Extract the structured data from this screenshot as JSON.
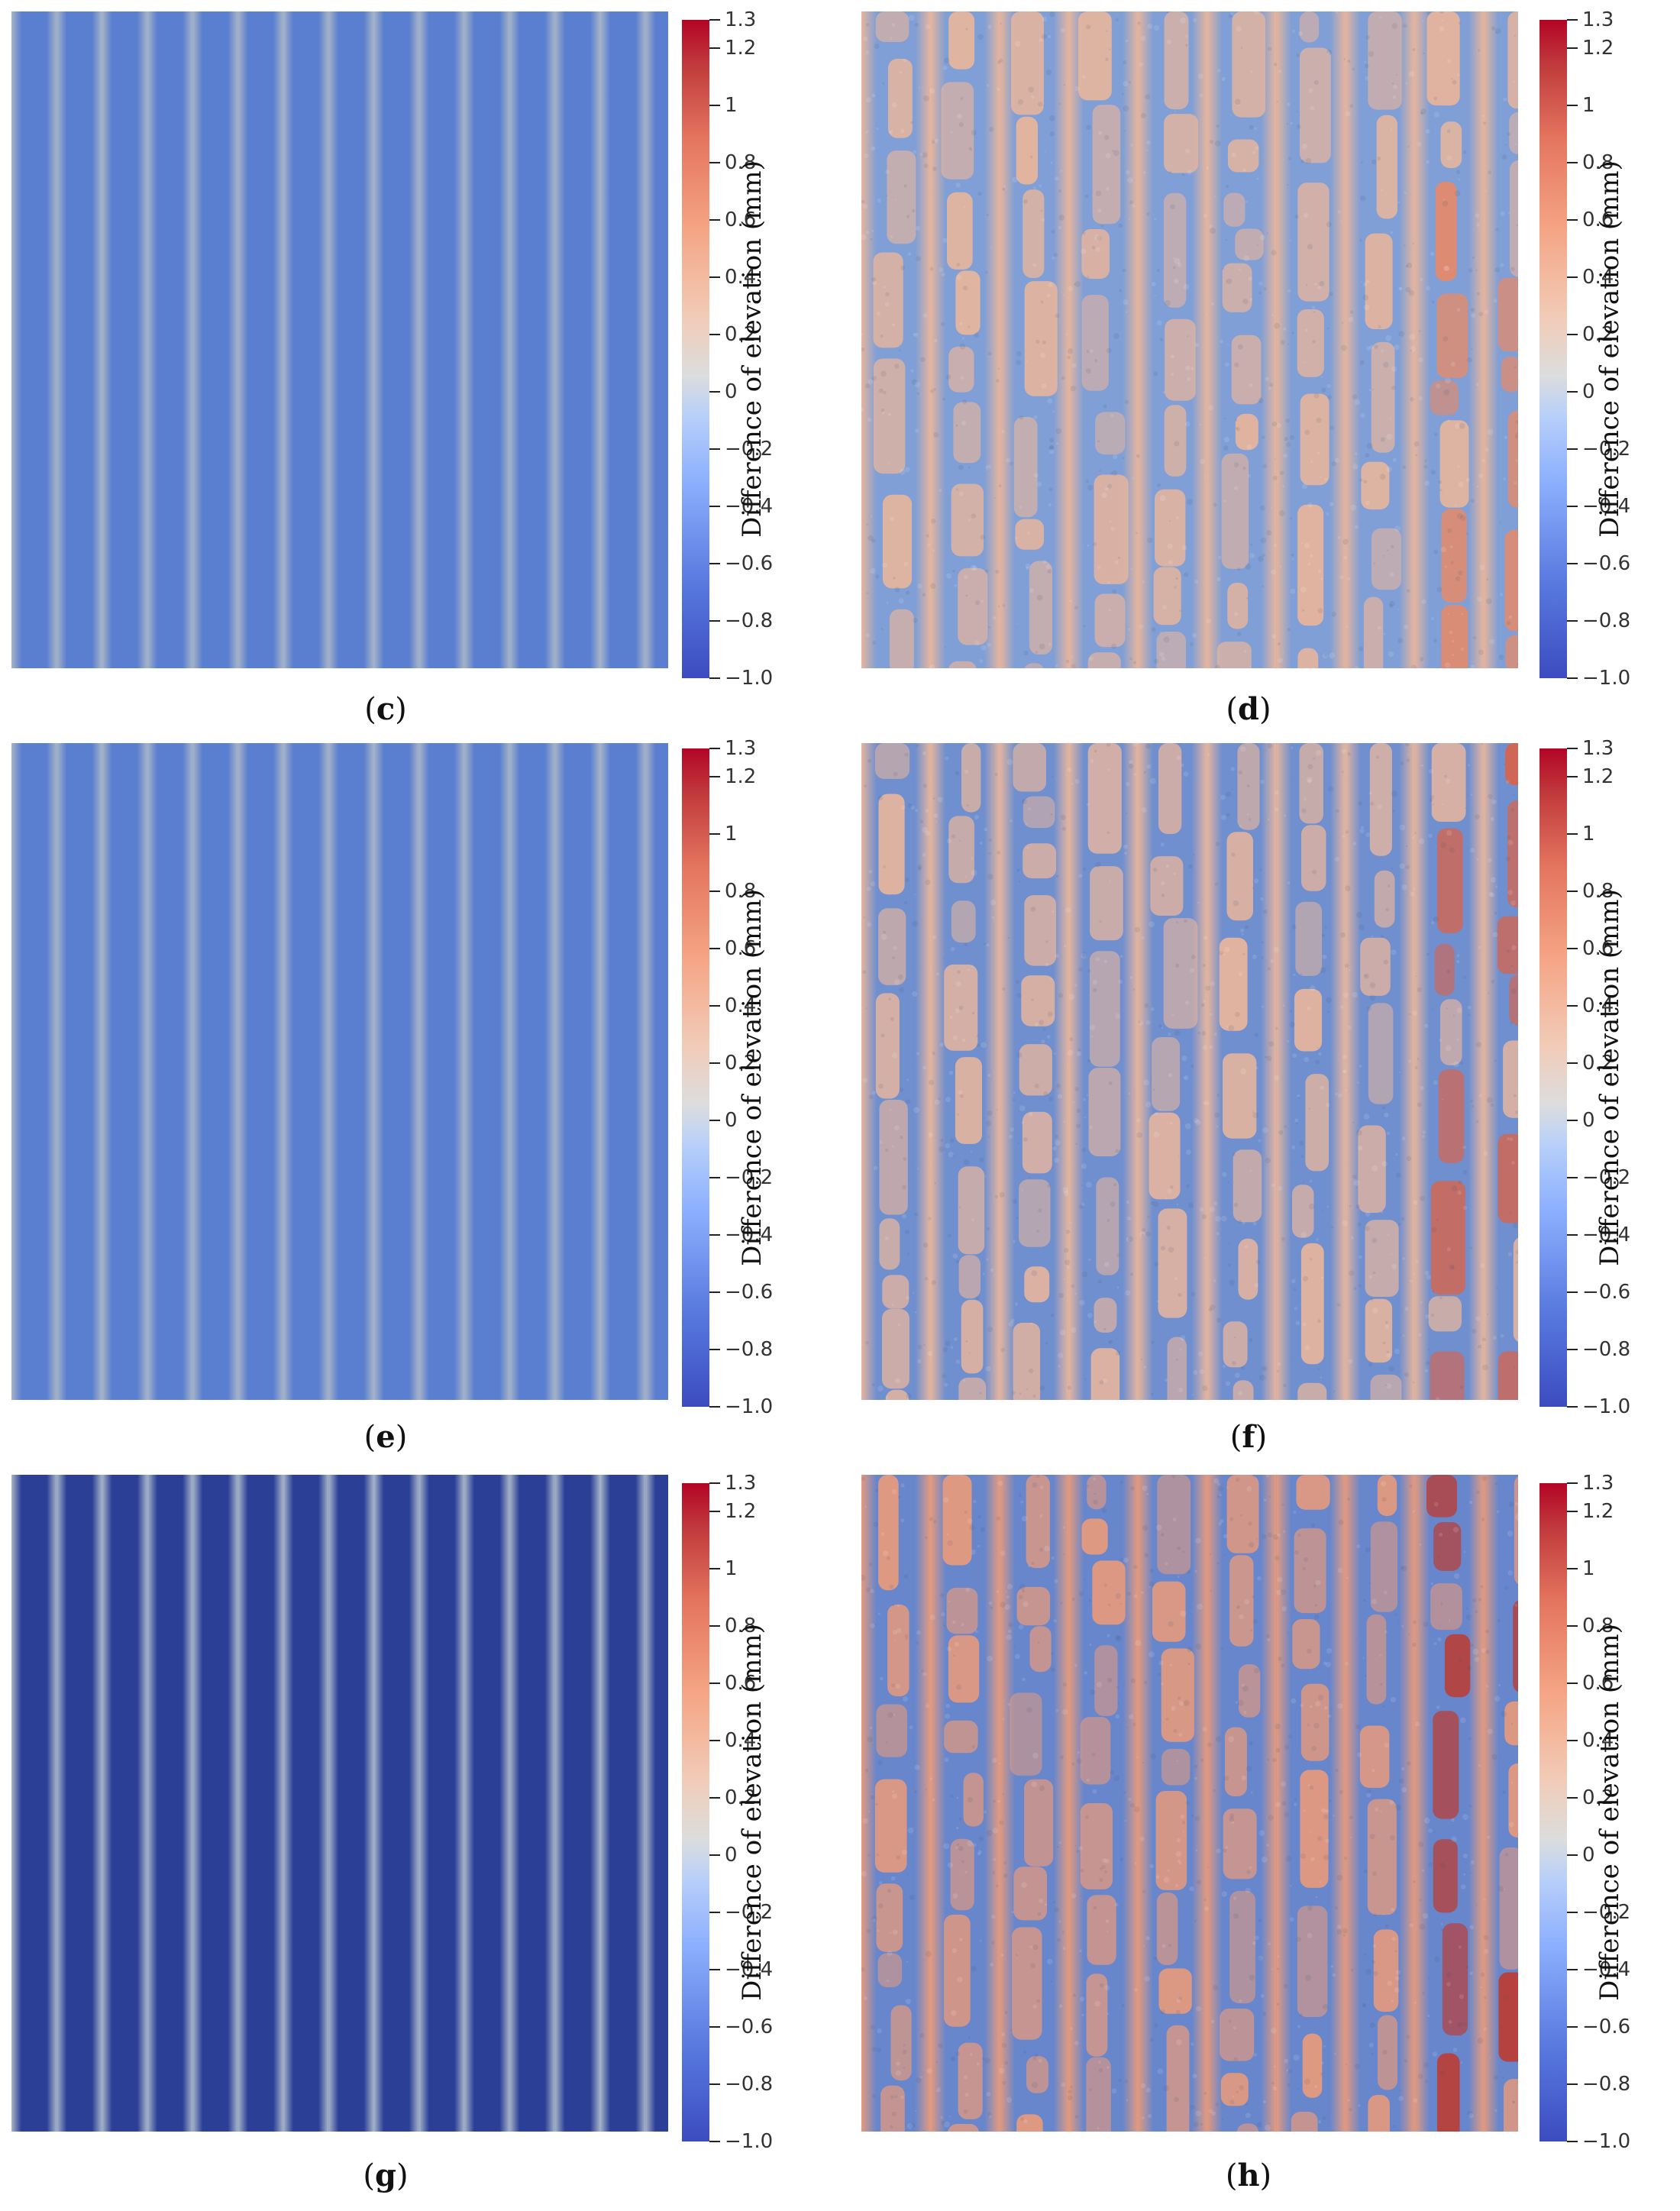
{
  "colorbar": {
    "title": "Difference of elevation (mm)",
    "ticks": [
      "1.3",
      "1.2",
      "1",
      "0.8",
      "0.6",
      "0.4",
      "0.2",
      "0",
      "−0.2",
      "−0.4",
      "−0.6",
      "−0.8",
      "−1.0"
    ],
    "tick_values": [
      1.3,
      1.2,
      1,
      0.8,
      0.6,
      0.4,
      0.2,
      0,
      -0.2,
      -0.4,
      -0.6,
      -0.8,
      -1.0
    ],
    "range": [
      -1.0,
      1.3
    ]
  },
  "panels": [
    {
      "id": "c",
      "label": "c",
      "kind": "model",
      "trough_color": "#5b7fd0",
      "ridge_color": "#a6b4c8"
    },
    {
      "id": "d",
      "label": "d",
      "kind": "scan",
      "trough_color": "#7f9fd6",
      "ridge_color": "#e7b59c",
      "hot_color": "#e48b6c"
    },
    {
      "id": "e",
      "label": "e",
      "kind": "model",
      "trough_color": "#5b7fd0",
      "ridge_color": "#a6b4c8"
    },
    {
      "id": "f",
      "label": "f",
      "kind": "scan",
      "trough_color": "#6f8fcf",
      "ridge_color": "#e6b59d",
      "hot_color": "#d8644c"
    },
    {
      "id": "g",
      "label": "g",
      "kind": "model",
      "trough_color": "#2b3f97",
      "ridge_color": "#a6b4c8"
    },
    {
      "id": "h",
      "label": "h",
      "kind": "scan",
      "trough_color": "#6786cc",
      "ridge_color": "#e59a7d",
      "hot_color": "#c0392b"
    }
  ]
}
